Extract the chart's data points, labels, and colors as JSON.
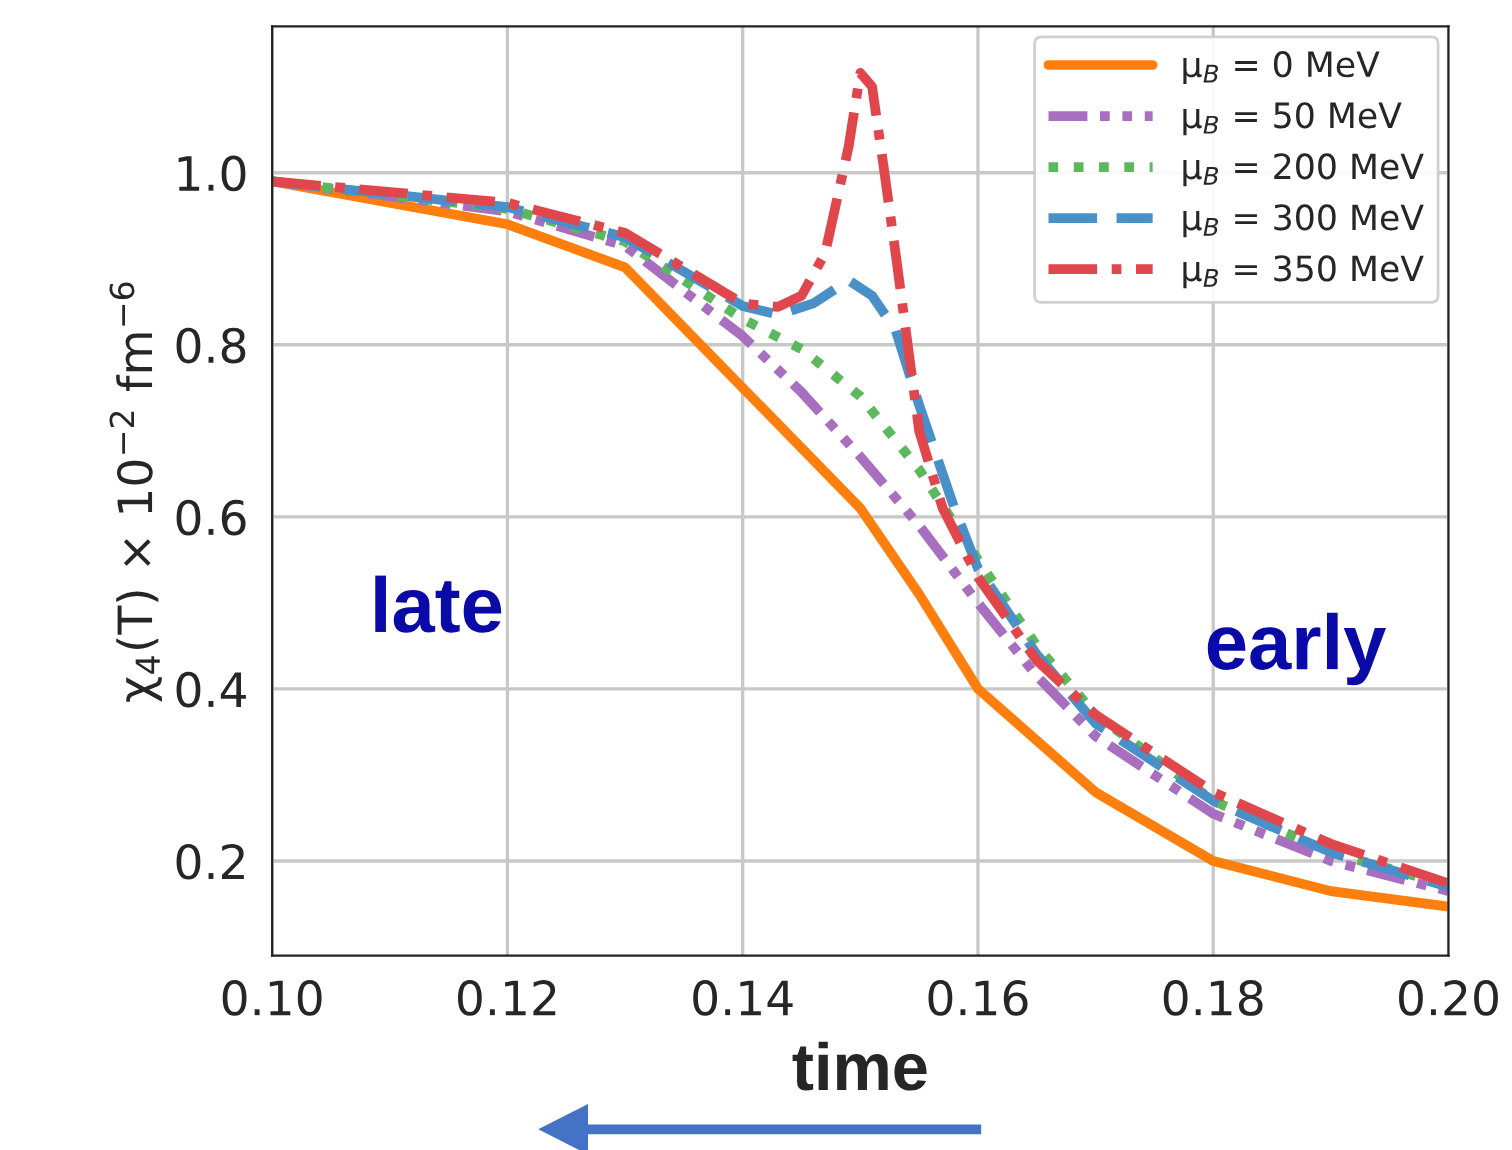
{
  "chart_data": {
    "type": "line",
    "xlabel": "time",
    "ylabel": "χ$_{4}$(T) × 10$^{−2}$ fm$^{−6}$",
    "annotations": [
      "late",
      "early"
    ],
    "xlim": [
      0.1,
      0.2
    ],
    "xticks": [
      {
        "value": 0.1,
        "label": "0.10"
      },
      0.12,
      0.14,
      0.16,
      0.18,
      {
        "value": 0.2,
        "label": "0.20"
      }
    ],
    "ylim": [
      0.09,
      1.17
    ],
    "yticks": [
      0.2,
      0.4,
      0.6,
      0.8,
      {
        "value": 1.0,
        "label": "1.0"
      }
    ],
    "grid": true,
    "legend": "top right",
    "series": [
      {
        "name": "μ$_{B}$ = 0 MeV",
        "color": "#ff7f0e",
        "line_style": "solid",
        "x": [
          0.1,
          0.12,
          0.13,
          0.14,
          0.15,
          0.155,
          0.16,
          0.17,
          0.18,
          0.19,
          0.2
        ],
        "values": [
          0.99,
          0.94,
          0.89,
          0.75,
          0.61,
          0.51,
          0.4,
          0.28,
          0.2,
          0.165,
          0.147
        ]
      },
      {
        "name": "μ$_{B}$ = 50 MeV",
        "color": "#a86fc0",
        "line_style": "dashdotdot",
        "x": [
          0.1,
          0.12,
          0.13,
          0.14,
          0.145,
          0.15,
          0.155,
          0.16,
          0.165,
          0.17,
          0.18,
          0.19,
          0.2
        ],
        "values": [
          0.99,
          0.955,
          0.915,
          0.81,
          0.745,
          0.67,
          0.59,
          0.5,
          0.415,
          0.345,
          0.255,
          0.2,
          0.165
        ]
      },
      {
        "name": "μ$_{B}$ = 200 MeV",
        "color": "#5cb85c",
        "line_style": "dotted",
        "x": [
          0.1,
          0.12,
          0.13,
          0.14,
          0.145,
          0.15,
          0.155,
          0.16,
          0.165,
          0.17,
          0.18,
          0.19,
          0.2
        ],
        "values": [
          0.99,
          0.958,
          0.92,
          0.83,
          0.795,
          0.74,
          0.655,
          0.55,
          0.45,
          0.37,
          0.27,
          0.21,
          0.172
        ]
      },
      {
        "name": "μ$_{B}$ = 300 MeV",
        "color": "#4a90c8",
        "line_style": "dashed",
        "x": [
          0.1,
          0.12,
          0.13,
          0.14,
          0.143,
          0.146,
          0.149,
          0.151,
          0.153,
          0.155,
          0.158,
          0.16,
          0.165,
          0.17,
          0.18,
          0.19,
          0.2
        ],
        "values": [
          0.99,
          0.96,
          0.925,
          0.845,
          0.835,
          0.848,
          0.875,
          0.857,
          0.817,
          0.73,
          0.61,
          0.54,
          0.44,
          0.36,
          0.27,
          0.21,
          0.17
        ]
      },
      {
        "name": "μ$_{B}$ = 350 MeV",
        "color": "#e0474c",
        "line_style": "dashdot",
        "x": [
          0.1,
          0.12,
          0.13,
          0.14,
          0.143,
          0.145,
          0.147,
          0.149,
          0.15,
          0.151,
          0.152,
          0.153,
          0.155,
          0.157,
          0.16,
          0.165,
          0.17,
          0.18,
          0.19,
          0.2
        ],
        "values": [
          0.99,
          0.965,
          0.93,
          0.848,
          0.844,
          0.857,
          0.906,
          1.03,
          1.116,
          1.1,
          1.005,
          0.906,
          0.7,
          0.61,
          0.53,
          0.433,
          0.37,
          0.28,
          0.22,
          0.174
        ]
      }
    ]
  }
}
